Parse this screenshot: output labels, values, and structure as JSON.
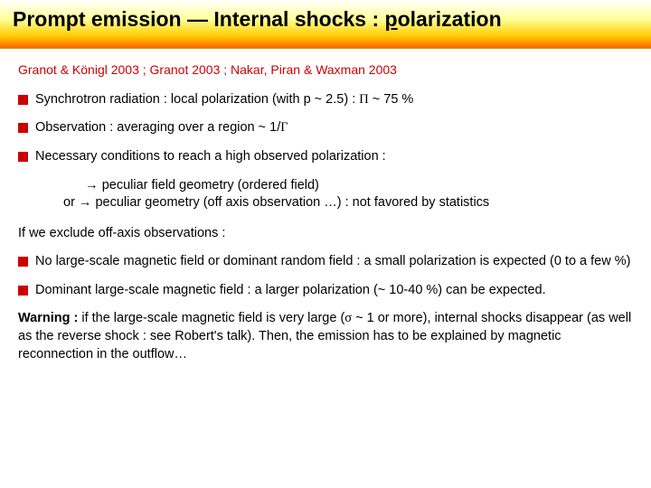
{
  "title_prefix": "Prompt emission — Internal shocks : ",
  "title_p": "p",
  "title_rest": "olarization",
  "refs": "Granot & Königl 2003 ; Granot 2003 ; Nakar, Piran & Waxman 2003",
  "b1_a": "Synchrotron radiation : local polarization (with p ~ 2.5) : ",
  "b1_pi": "Π",
  "b1_b": " ~ 75 %",
  "b2_a": "Observation : averaging over a region ~ 1/",
  "b2_g": "Γ",
  "b3": "Necessary conditions to reach a high observed polarization :",
  "sub_arrow": "→",
  "sub1": " peculiar field geometry (ordered field)",
  "sub_or": "or  ",
  "sub2": " peculiar geometry (off axis observation …) : not favored by statistics",
  "p_exclude": "If we exclude off-axis observations :",
  "b4": "No large-scale magnetic field or dominant random field : a small polarization is expected (0 to a few %)",
  "b5_a": "Dominant large-scale magnetic field :  a larger polarization ",
  "b5_b": "(~ 10-40 %)",
  "b5_c": " can be expected.",
  "warn_label": "Warning :",
  "warn_a": " if the large-scale magnetic field is very large (",
  "warn_sig": "σ",
  "warn_b": " ~ 1 or more), internal shocks disappear (as well as the reverse shock : see Robert's talk). Then, the emission has to be explained by magnetic reconnection in the outflow…",
  "colors": {
    "accent": "#cc0000",
    "grad_top": "#ffffff",
    "grad_mid": "#ffcc00",
    "grad_bot": "#ff6600"
  }
}
